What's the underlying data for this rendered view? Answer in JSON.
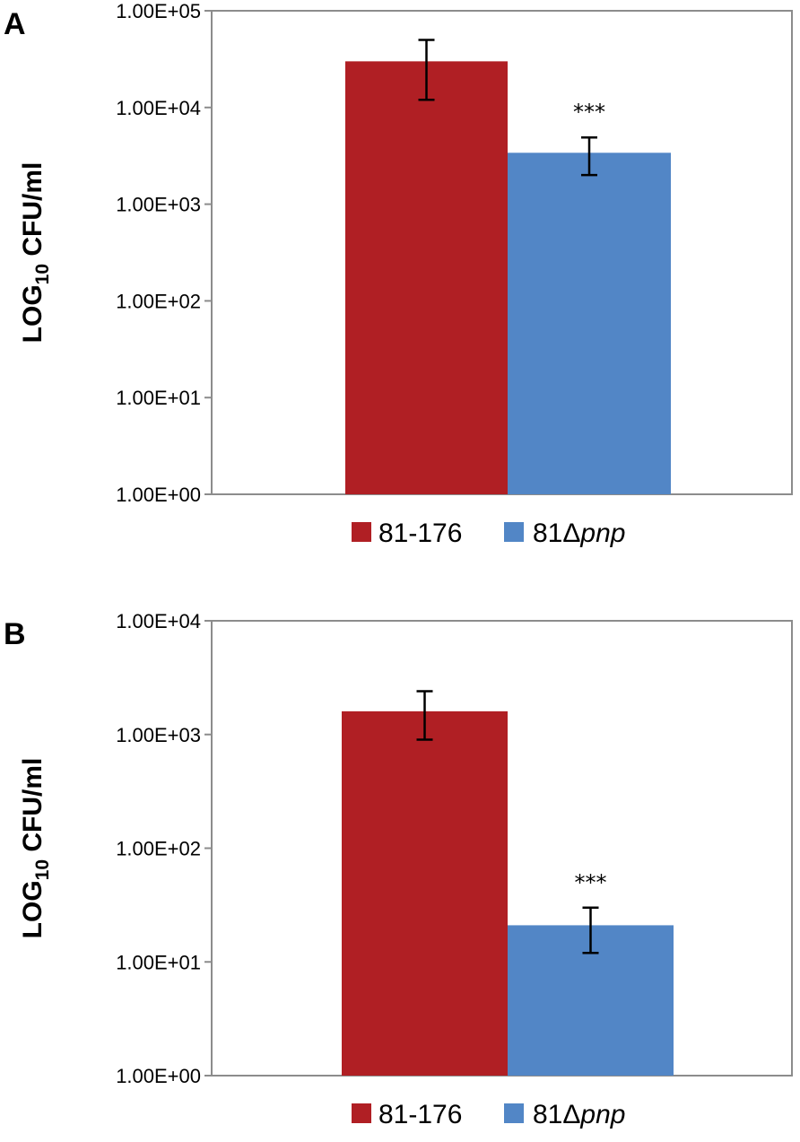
{
  "chart_data": [
    {
      "type": "bar",
      "panel_label": "A",
      "ylabel": "LOG",
      "ylabel_sub": "10",
      "ylabel_suffix": " CFU/ml",
      "yscale": "log",
      "ylim": [
        1,
        100000
      ],
      "yticks": [
        1,
        10,
        100,
        1000,
        10000,
        100000
      ],
      "ytick_labels": [
        "1.00E+00",
        "1.00E+01",
        "1.00E+02",
        "1.00E+03",
        "1.00E+04",
        "1.00E+05"
      ],
      "grid": false,
      "series": [
        {
          "name": "81-176",
          "legend_number": "81-176",
          "color": "#b01f24",
          "value": 30000,
          "err_low": 12000,
          "err_high": 50000,
          "annotation": ""
        },
        {
          "name": "81Δpnp",
          "legend_number": "81Δ",
          "legend_italic": "pnp",
          "color": "#5286c6",
          "value": 3400,
          "err_low": 2000,
          "err_high": 4900,
          "annotation": "***"
        }
      ]
    },
    {
      "type": "bar",
      "panel_label": "B",
      "ylabel": "LOG",
      "ylabel_sub": "10",
      "ylabel_suffix": " CFU/ml",
      "yscale": "log",
      "ylim": [
        1,
        10000
      ],
      "yticks": [
        1,
        10,
        100,
        1000,
        10000
      ],
      "ytick_labels": [
        "1.00E+00",
        "1.00E+01",
        "1.00E+02",
        "1.00E+03",
        "1.00E+04"
      ],
      "grid": false,
      "series": [
        {
          "name": "81-176",
          "legend_number": "81-176",
          "color": "#b01f24",
          "value": 1600,
          "err_low": 900,
          "err_high": 2400,
          "annotation": ""
        },
        {
          "name": "81Δpnp",
          "legend_number": "81Δ",
          "legend_italic": "pnp",
          "color": "#5286c6",
          "value": 21,
          "err_low": 12,
          "err_high": 30,
          "annotation": "***"
        }
      ]
    }
  ]
}
